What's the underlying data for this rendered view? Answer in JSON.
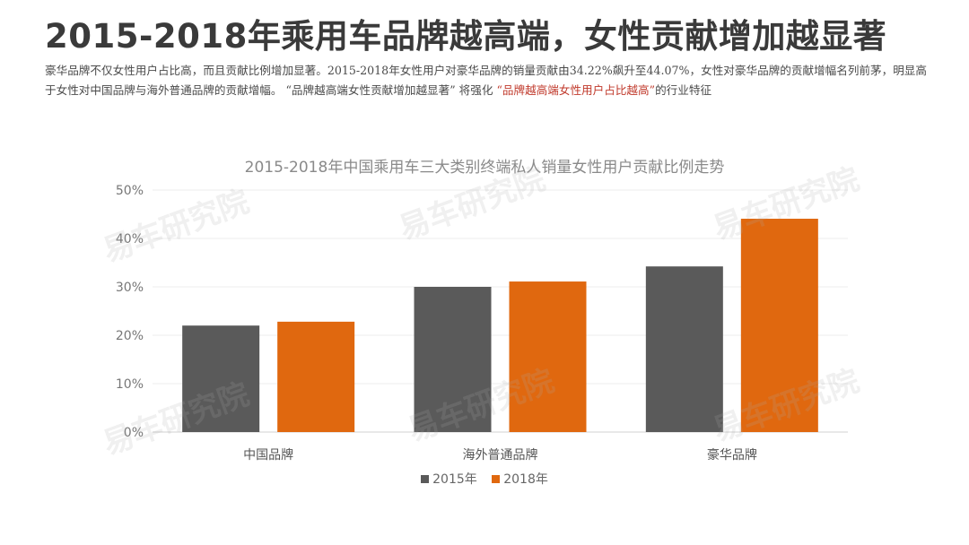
{
  "header": {
    "title": "2015-2018年乘用车品牌越高端，女性贡献增加越显著",
    "subtitle_parts": [
      "豪华品牌不仅女性用户占比高，而且贡献比例增加显著。2015-2018年女性用户对豪华品牌的销量贡献由34.22%飙升至44.07%，女性对豪华品牌的贡献增幅名列前茅，明显高于女性对中国品牌与海外普通品牌的贡献增幅。 “品牌越高端女性贡献增加越显著” 将强化 ",
      "“品牌越高端女性用户占比越高”",
      "的行业特征"
    ]
  },
  "watermark": "易车研究院",
  "colors": {
    "series_2015": "#5a5a5a",
    "series_2018": "#e0680f",
    "highlight": "#c0392b"
  },
  "chart_data": {
    "type": "bar",
    "title": "2015-2018年中国乘用车三大类别终端私人销量女性用户贡献比例走势",
    "categories": [
      "中国品牌",
      "海外普通品牌",
      "豪华品牌"
    ],
    "series": [
      {
        "name": "2015年",
        "values": [
          22.0,
          30.0,
          34.22
        ]
      },
      {
        "name": "2018年",
        "values": [
          22.8,
          31.1,
          44.07
        ]
      }
    ],
    "y_ticks": [
      "0%",
      "10%",
      "20%",
      "30%",
      "40%",
      "50%"
    ],
    "ylim": [
      0,
      50
    ],
    "grid": true,
    "legend": "bottom"
  }
}
